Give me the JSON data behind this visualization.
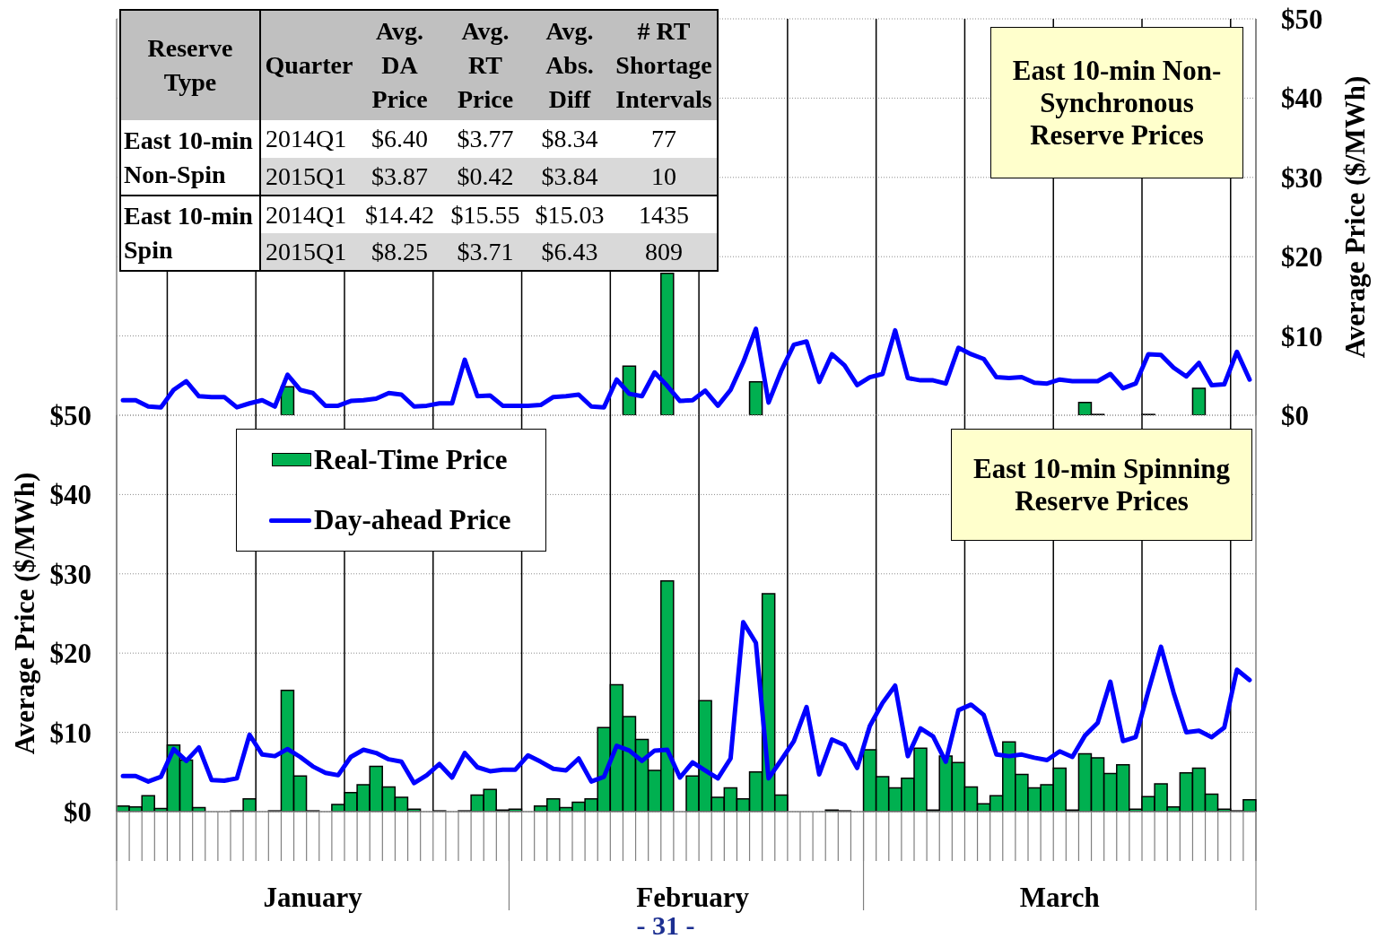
{
  "chart_data": [
    {
      "type": "other",
      "categories": [
        "Reserve Type",
        "Quarter",
        "Avg. DA Price",
        "Avg. RT Price",
        "Avg. Abs. Diff",
        "# RT Shortage Intervals"
      ],
      "cell_labels": [
        [
          "East 10-min Non-Spin",
          "2014Q1",
          "$6.40",
          "$3.77",
          "$8.34",
          "77"
        ],
        [
          null,
          "2015Q1",
          "$3.87",
          "$0.42",
          "$3.84",
          "10"
        ],
        [
          "East 10-min Spin",
          "2014Q1",
          "$14.42",
          "$15.55",
          "$15.03",
          "1435"
        ],
        [
          null,
          "2015Q1",
          "$8.25",
          "$3.71",
          "$6.43",
          "809"
        ]
      ]
    },
    {
      "type": "bar",
      "title": "East 10-min Non-Synchronous Reserve Prices",
      "ylabel": "Average Price ($/MWh)",
      "categories": [
        null,
        null,
        null,
        null,
        null,
        null,
        null,
        null,
        null,
        null,
        null,
        null,
        null,
        null,
        null,
        null,
        null,
        null,
        null,
        null,
        null,
        null,
        null,
        null,
        null,
        null,
        null,
        null,
        null,
        null,
        null,
        null,
        null,
        null,
        null,
        null,
        null,
        null,
        null,
        null,
        null,
        null,
        null,
        null,
        null,
        null,
        null,
        null,
        null,
        null,
        null,
        null,
        null,
        null,
        null,
        null,
        null,
        null,
        null,
        null,
        null,
        null,
        null,
        null,
        null,
        null,
        null,
        null,
        null,
        null,
        null,
        null,
        null,
        null,
        null,
        null,
        null,
        null,
        null,
        null,
        null,
        null,
        null,
        null,
        null,
        null,
        null,
        null,
        null,
        null
      ],
      "series": [
        {
          "type": "bar",
          "color": "#00b050",
          "values": [
            0,
            0,
            0,
            0,
            0,
            0,
            0,
            0,
            0,
            0,
            0,
            0,
            0,
            3.6,
            0,
            0,
            0,
            0,
            0,
            0,
            0,
            0,
            0,
            0,
            0,
            0,
            0,
            0,
            0,
            0,
            0,
            0,
            0,
            0,
            0,
            0,
            0,
            0,
            0,
            0,
            6.2,
            0,
            0,
            17.9,
            0,
            0,
            0,
            0,
            0,
            0,
            4.2,
            0,
            0,
            0,
            0,
            0,
            0,
            0,
            0,
            0,
            0,
            0,
            0,
            0,
            0,
            0,
            0,
            0,
            0,
            0,
            0,
            0,
            0,
            0,
            0,
            0,
            1.6,
            0.1,
            0,
            0,
            0,
            0.1,
            0,
            0,
            0,
            3.4,
            0,
            0,
            0,
            0
          ]
        },
        {
          "type": "line",
          "color": "#0000ff",
          "values": [
            1.9,
            1.9,
            1.1,
            1.0,
            3.2,
            4.3,
            2.4,
            2.3,
            2.3,
            1.0,
            1.5,
            1.9,
            1.1,
            5.1,
            3.2,
            2.8,
            1.2,
            1.2,
            1.8,
            1.9,
            2.1,
            2.8,
            2.6,
            1.1,
            1.2,
            1.5,
            1.5,
            7.0,
            2.4,
            2.5,
            1.2,
            1.2,
            1.2,
            1.3,
            2.3,
            2.4,
            2.6,
            1.1,
            1.0,
            4.5,
            2.7,
            2.4,
            5.4,
            3.7,
            1.8,
            1.9,
            3.1,
            1.2,
            3.2,
            6.7,
            10.9,
            1.6,
            5.6,
            8.9,
            9.3,
            4.2,
            7.7,
            6.3,
            3.8,
            4.8,
            5.2,
            10.7,
            4.7,
            4.4,
            4.4,
            4.0,
            8.5,
            7.7,
            7.1,
            4.8,
            4.7,
            4.8,
            4.1,
            4.0,
            4.5,
            4.3,
            4.3,
            4.3,
            5.2,
            3.4,
            4.0,
            7.7,
            7.6,
            6.0,
            4.9,
            6.6,
            3.8,
            3.9,
            8.0,
            4.5
          ]
        }
      ],
      "ylim": [
        0,
        50
      ],
      "yticks": [
        {
          "value": 0,
          "label": "$0"
        },
        {
          "value": 10,
          "label": "$10"
        },
        {
          "value": 20,
          "label": "$20"
        },
        {
          "value": 30,
          "label": "$30"
        },
        {
          "value": 40,
          "label": "$40"
        },
        {
          "value": 50,
          "label": "$50"
        }
      ],
      "grid": true,
      "tick_labels": "y"
    },
    {
      "type": "bar",
      "title": "East 10-min Spinning Reserve Prices",
      "ylabel": "Average Price ($/MWh)",
      "categories": [
        null,
        null,
        null,
        null,
        null,
        null,
        null,
        null,
        null,
        null,
        null,
        null,
        null,
        null,
        null,
        "January",
        null,
        null,
        null,
        null,
        null,
        null,
        null,
        null,
        null,
        null,
        null,
        null,
        null,
        null,
        null,
        null,
        null,
        null,
        null,
        null,
        null,
        null,
        null,
        null,
        null,
        null,
        null,
        null,
        null,
        "February",
        null,
        null,
        null,
        null,
        null,
        null,
        null,
        null,
        null,
        null,
        null,
        null,
        null,
        null,
        null,
        null,
        null,
        null,
        null,
        null,
        null,
        null,
        null,
        null,
        null,
        null,
        null,
        null,
        "March",
        null,
        null,
        null,
        null,
        null,
        null,
        null,
        null,
        null,
        null,
        null,
        null,
        null,
        null,
        null
      ],
      "series": [
        {
          "type": "bar",
          "name": "Real-Time Price",
          "color": "#00b050",
          "values": [
            0.7,
            0.6,
            2.0,
            0.4,
            8.4,
            6.5,
            0.5,
            0,
            0,
            0.1,
            1.6,
            0,
            0.1,
            15.3,
            4.5,
            0.1,
            0,
            0.9,
            2.4,
            3.4,
            5.7,
            3.1,
            1.8,
            0.3,
            0,
            0.1,
            0,
            0.1,
            2.1,
            2.8,
            0.2,
            0.3,
            0,
            0.7,
            1.6,
            0.5,
            1.2,
            1.6,
            10.6,
            16.0,
            12.0,
            9.1,
            5.2,
            29.1,
            0,
            4.5,
            14.0,
            1.8,
            3.0,
            1.6,
            5.0,
            27.5,
            2.1,
            0,
            0,
            0,
            0.2,
            0.1,
            0,
            7.8,
            4.4,
            3.0,
            4.2,
            8.0,
            0.2,
            7.0,
            6.2,
            3.1,
            1.0,
            2.0,
            8.8,
            4.7,
            3.0,
            3.4,
            5.5,
            0.2,
            7.3,
            6.8,
            4.8,
            5.9,
            0.3,
            1.9,
            3.5,
            0.6,
            4.9,
            5.5,
            2.2,
            0.3,
            0.1,
            1.5
          ]
        },
        {
          "type": "line",
          "name": "Day-ahead Price",
          "color": "#0000ff",
          "values": [
            4.5,
            4.5,
            3.8,
            4.4,
            7.9,
            6.4,
            8.1,
            4.0,
            3.9,
            4.2,
            9.7,
            7.2,
            7.0,
            7.9,
            6.9,
            5.7,
            4.9,
            4.6,
            6.9,
            7.8,
            7.4,
            6.6,
            6.3,
            3.6,
            4.6,
            6.0,
            4.3,
            7.4,
            5.6,
            5.1,
            5.3,
            5.3,
            7.1,
            6.3,
            5.4,
            5.2,
            6.7,
            3.8,
            4.4,
            8.3,
            7.7,
            6.4,
            7.7,
            7.8,
            4.3,
            6.2,
            5.2,
            4.2,
            6.7,
            23.9,
            21.3,
            4.2,
            6.5,
            8.9,
            13.2,
            4.7,
            9.1,
            8.4,
            5.5,
            10.8,
            13.7,
            15.9,
            7.0,
            10.5,
            9.5,
            6.3,
            12.8,
            13.5,
            12.2,
            7.2,
            7.0,
            7.2,
            6.8,
            6.5,
            7.6,
            6.9,
            9.6,
            11.2,
            16.4,
            8.9,
            9.4,
            15.2,
            20.8,
            15.0,
            10.0,
            10.2,
            9.4,
            10.6,
            17.9,
            16.6
          ]
        }
      ],
      "ylim": [
        0,
        50
      ],
      "yticks": [
        {
          "value": 0,
          "label": "$0"
        },
        {
          "value": 10,
          "label": "$10"
        },
        {
          "value": 20,
          "label": "$20"
        },
        {
          "value": 30,
          "label": "$30"
        },
        {
          "value": 40,
          "label": "$40"
        },
        {
          "value": 50,
          "label": "$50"
        }
      ],
      "grid": true,
      "legend": "top left",
      "annotations": [
        "- 31 -"
      ]
    }
  ]
}
